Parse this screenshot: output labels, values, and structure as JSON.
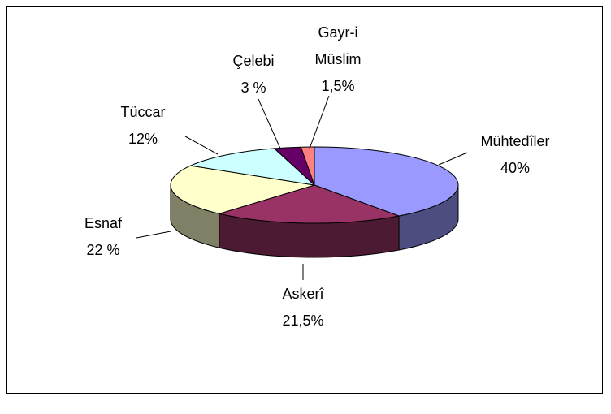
{
  "chart_data": {
    "type": "pie",
    "categories": [
      "Mühtedîler",
      "Askerî",
      "Esnaf",
      "Tüccar",
      "Çelebi",
      "Gayr-i Müslim"
    ],
    "values": [
      40,
      21.5,
      22,
      12,
      3,
      1.5
    ],
    "value_labels": [
      "40%",
      "21,5%",
      "22 %",
      "12%",
      "3 %",
      "1,5%"
    ],
    "colors": [
      "#9999ff",
      "#993366",
      "#ffffcc",
      "#ccffff",
      "#660066",
      "#ff8080"
    ]
  }
}
